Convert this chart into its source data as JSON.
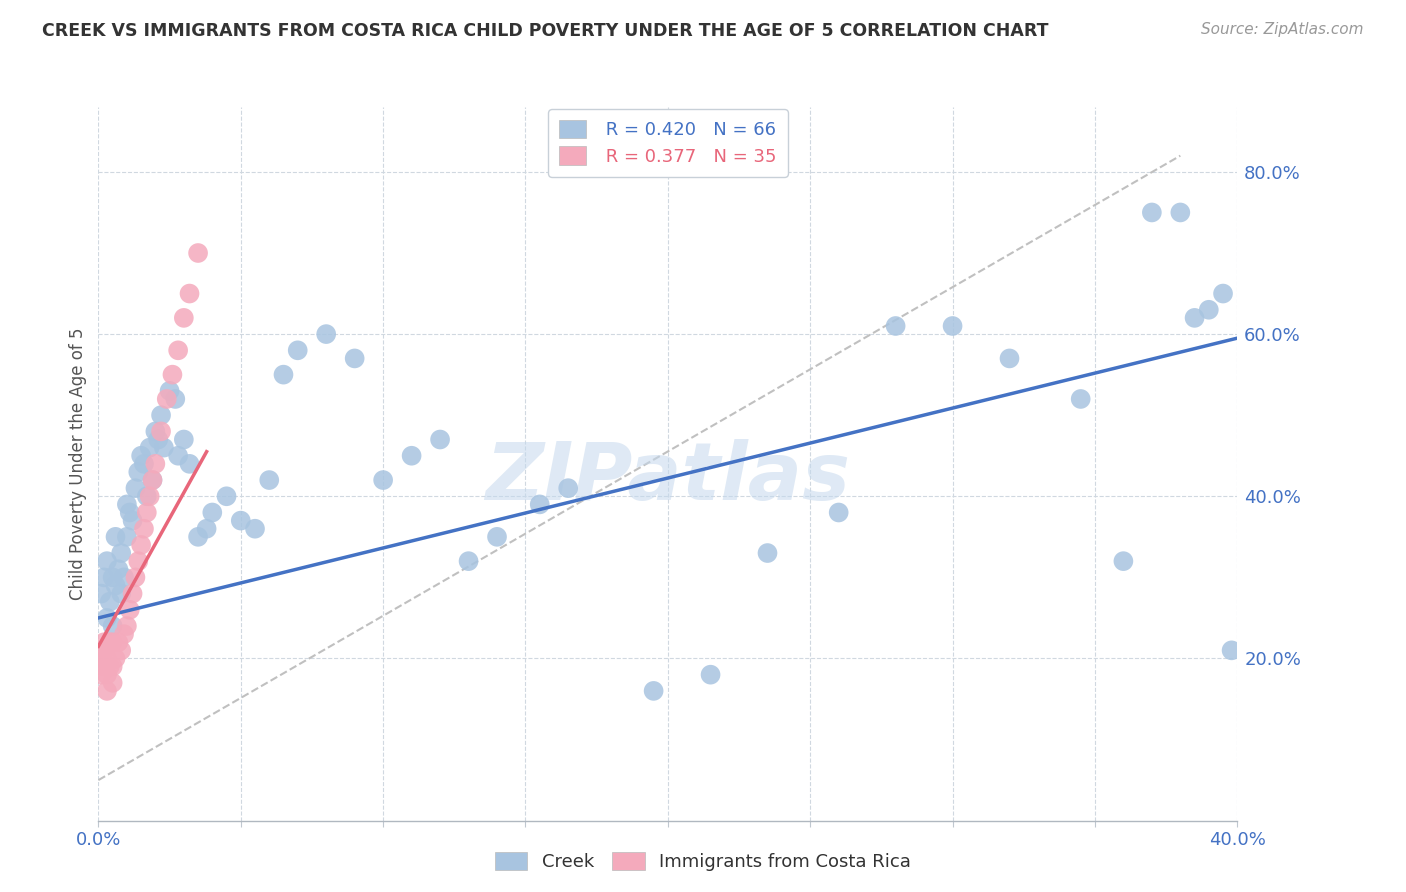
{
  "title": "CREEK VS IMMIGRANTS FROM COSTA RICA CHILD POVERTY UNDER THE AGE OF 5 CORRELATION CHART",
  "source": "Source: ZipAtlas.com",
  "ylabel": "Child Poverty Under the Age of 5",
  "ytick_values": [
    0.2,
    0.4,
    0.6,
    0.8
  ],
  "xlim": [
    0.0,
    0.4
  ],
  "ylim": [
    0.0,
    0.88
  ],
  "legend_blue_R": "R = 0.420",
  "legend_blue_N": "N = 66",
  "legend_pink_R": "R = 0.377",
  "legend_pink_N": "N = 35",
  "legend_label_blue": "Creek",
  "legend_label_pink": "Immigrants from Costa Rica",
  "color_blue": "#a8c4e0",
  "color_pink": "#f4aabc",
  "color_blue_line": "#4472c4",
  "color_pink_line": "#e8667a",
  "color_blue_text": "#4472c4",
  "color_pink_text": "#e8667a",
  "watermark": "ZIPatlas",
  "blue_line_x0": 0.0,
  "blue_line_y0": 0.25,
  "blue_line_x1": 0.4,
  "blue_line_y1": 0.595,
  "pink_line_x0": 0.0,
  "pink_line_y0": 0.215,
  "pink_line_x1": 0.038,
  "pink_line_y1": 0.455,
  "diag_line_x0": 0.0,
  "diag_line_y0": 0.05,
  "diag_line_x1": 0.38,
  "diag_line_y1": 0.82,
  "blue_x": [
    0.001,
    0.002,
    0.003,
    0.003,
    0.004,
    0.005,
    0.005,
    0.006,
    0.006,
    0.007,
    0.008,
    0.008,
    0.009,
    0.01,
    0.01,
    0.011,
    0.012,
    0.013,
    0.014,
    0.015,
    0.016,
    0.017,
    0.018,
    0.019,
    0.02,
    0.021,
    0.022,
    0.023,
    0.025,
    0.027,
    0.028,
    0.03,
    0.032,
    0.035,
    0.038,
    0.04,
    0.045,
    0.05,
    0.055,
    0.06,
    0.065,
    0.07,
    0.08,
    0.09,
    0.1,
    0.11,
    0.12,
    0.13,
    0.14,
    0.155,
    0.165,
    0.195,
    0.215,
    0.235,
    0.26,
    0.28,
    0.3,
    0.32,
    0.345,
    0.36,
    0.37,
    0.38,
    0.385,
    0.39,
    0.395,
    0.398
  ],
  "blue_y": [
    0.28,
    0.3,
    0.25,
    0.32,
    0.27,
    0.3,
    0.24,
    0.35,
    0.29,
    0.31,
    0.28,
    0.33,
    0.3,
    0.39,
    0.35,
    0.38,
    0.37,
    0.41,
    0.43,
    0.45,
    0.44,
    0.4,
    0.46,
    0.42,
    0.48,
    0.47,
    0.5,
    0.46,
    0.53,
    0.52,
    0.45,
    0.47,
    0.44,
    0.35,
    0.36,
    0.38,
    0.4,
    0.37,
    0.36,
    0.42,
    0.55,
    0.58,
    0.6,
    0.57,
    0.42,
    0.45,
    0.47,
    0.32,
    0.35,
    0.39,
    0.41,
    0.16,
    0.18,
    0.33,
    0.38,
    0.61,
    0.61,
    0.57,
    0.52,
    0.32,
    0.75,
    0.75,
    0.62,
    0.63,
    0.65,
    0.21
  ],
  "pink_x": [
    0.001,
    0.001,
    0.002,
    0.002,
    0.002,
    0.003,
    0.003,
    0.003,
    0.004,
    0.004,
    0.005,
    0.005,
    0.005,
    0.006,
    0.007,
    0.008,
    0.009,
    0.01,
    0.011,
    0.012,
    0.013,
    0.014,
    0.015,
    0.016,
    0.017,
    0.018,
    0.019,
    0.02,
    0.022,
    0.024,
    0.026,
    0.028,
    0.03,
    0.032,
    0.035
  ],
  "pink_y": [
    0.2,
    0.18,
    0.22,
    0.19,
    0.21,
    0.2,
    0.18,
    0.16,
    0.22,
    0.19,
    0.22,
    0.19,
    0.17,
    0.2,
    0.22,
    0.21,
    0.23,
    0.24,
    0.26,
    0.28,
    0.3,
    0.32,
    0.34,
    0.36,
    0.38,
    0.4,
    0.42,
    0.44,
    0.48,
    0.52,
    0.55,
    0.58,
    0.62,
    0.65,
    0.7
  ]
}
